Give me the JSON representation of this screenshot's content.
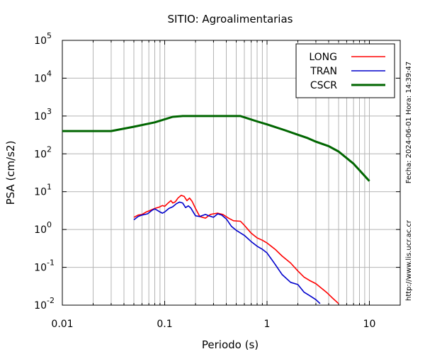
{
  "chart_data": {
    "type": "line",
    "title": "SITIO: Agroalimentarias",
    "xlabel": "Periodo (s)",
    "ylabel": "PSA (cm/s2)",
    "xscale": "log",
    "yscale": "log",
    "xlim": [
      0.01,
      20
    ],
    "ylim": [
      0.01,
      100000
    ],
    "grid": true,
    "legend_position": "top-right",
    "x_tick_labels": [
      {
        "value": 0.01,
        "label": "0.01"
      },
      {
        "value": 0.1,
        "label": "0.1"
      },
      {
        "value": 1,
        "label": "1"
      },
      {
        "value": 10,
        "label": "10"
      }
    ],
    "y_tick_labels": [
      {
        "value": 0.01,
        "base": "10",
        "exp": "-2"
      },
      {
        "value": 0.1,
        "base": "10",
        "exp": "-1"
      },
      {
        "value": 1,
        "base": "10",
        "exp": "0"
      },
      {
        "value": 10,
        "base": "10",
        "exp": "1"
      },
      {
        "value": 100,
        "base": "10",
        "exp": "2"
      },
      {
        "value": 1000,
        "base": "10",
        "exp": "3"
      },
      {
        "value": 10000,
        "base": "10",
        "exp": "4"
      },
      {
        "value": 100000,
        "base": "10",
        "exp": "5"
      }
    ],
    "series": [
      {
        "name": "LONG",
        "color": "#ff0000",
        "width": 1.6,
        "points": [
          [
            0.05,
            2.1
          ],
          [
            0.055,
            2.4
          ],
          [
            0.06,
            2.5
          ],
          [
            0.066,
            2.9
          ],
          [
            0.072,
            3.2
          ],
          [
            0.08,
            3.6
          ],
          [
            0.088,
            3.9
          ],
          [
            0.095,
            4.3
          ],
          [
            0.1,
            4.1
          ],
          [
            0.108,
            5.0
          ],
          [
            0.115,
            5.8
          ],
          [
            0.12,
            5.0
          ],
          [
            0.127,
            5.4
          ],
          [
            0.135,
            6.8
          ],
          [
            0.145,
            8.0
          ],
          [
            0.155,
            7.5
          ],
          [
            0.165,
            5.8
          ],
          [
            0.175,
            6.8
          ],
          [
            0.185,
            5.6
          ],
          [
            0.2,
            3.6
          ],
          [
            0.22,
            2.2
          ],
          [
            0.25,
            2.0
          ],
          [
            0.28,
            2.5
          ],
          [
            0.3,
            2.6
          ],
          [
            0.33,
            2.7
          ],
          [
            0.37,
            2.5
          ],
          [
            0.42,
            2.0
          ],
          [
            0.47,
            1.7
          ],
          [
            0.55,
            1.65
          ],
          [
            0.6,
            1.3
          ],
          [
            0.7,
            0.8
          ],
          [
            0.8,
            0.6
          ],
          [
            0.9,
            0.52
          ],
          [
            1.0,
            0.44
          ],
          [
            1.2,
            0.3
          ],
          [
            1.4,
            0.2
          ],
          [
            1.7,
            0.13
          ],
          [
            2.0,
            0.08
          ],
          [
            2.3,
            0.055
          ],
          [
            2.6,
            0.045
          ],
          [
            3.0,
            0.037
          ],
          [
            3.3,
            0.03
          ],
          [
            3.8,
            0.022
          ],
          [
            4.3,
            0.016
          ],
          [
            5.0,
            0.011
          ]
        ]
      },
      {
        "name": "TRAN",
        "color": "#0000cc",
        "width": 1.6,
        "points": [
          [
            0.05,
            1.8
          ],
          [
            0.055,
            2.2
          ],
          [
            0.06,
            2.4
          ],
          [
            0.068,
            2.6
          ],
          [
            0.075,
            3.2
          ],
          [
            0.08,
            3.5
          ],
          [
            0.085,
            3.2
          ],
          [
            0.09,
            2.9
          ],
          [
            0.095,
            2.7
          ],
          [
            0.1,
            2.9
          ],
          [
            0.11,
            3.6
          ],
          [
            0.12,
            4.0
          ],
          [
            0.13,
            4.8
          ],
          [
            0.14,
            5.3
          ],
          [
            0.15,
            5.0
          ],
          [
            0.16,
            3.8
          ],
          [
            0.17,
            4.2
          ],
          [
            0.18,
            3.7
          ],
          [
            0.2,
            2.3
          ],
          [
            0.22,
            2.2
          ],
          [
            0.25,
            2.5
          ],
          [
            0.27,
            2.3
          ],
          [
            0.3,
            2.1
          ],
          [
            0.33,
            2.6
          ],
          [
            0.36,
            2.4
          ],
          [
            0.4,
            1.9
          ],
          [
            0.45,
            1.2
          ],
          [
            0.5,
            0.95
          ],
          [
            0.6,
            0.7
          ],
          [
            0.7,
            0.48
          ],
          [
            0.8,
            0.36
          ],
          [
            0.9,
            0.3
          ],
          [
            1.0,
            0.24
          ],
          [
            1.2,
            0.12
          ],
          [
            1.4,
            0.065
          ],
          [
            1.7,
            0.04
          ],
          [
            2.0,
            0.035
          ],
          [
            2.3,
            0.022
          ],
          [
            2.6,
            0.018
          ],
          [
            3.0,
            0.014
          ],
          [
            3.3,
            0.011
          ]
        ]
      },
      {
        "name": "CSCR",
        "color": "#006600",
        "width": 3,
        "points": [
          [
            0.01,
            400
          ],
          [
            0.03,
            400
          ],
          [
            0.05,
            520
          ],
          [
            0.08,
            680
          ],
          [
            0.12,
            950
          ],
          [
            0.15,
            1000
          ],
          [
            0.55,
            1000
          ],
          [
            0.8,
            720
          ],
          [
            1.0,
            600
          ],
          [
            1.5,
            420
          ],
          [
            2.0,
            320
          ],
          [
            2.5,
            260
          ],
          [
            3.0,
            210
          ],
          [
            4.0,
            160
          ],
          [
            5.0,
            115
          ],
          [
            7.0,
            55
          ],
          [
            10.0,
            19
          ]
        ]
      }
    ],
    "side_text": [
      "Fecha: 2024-06-01 Hora: 14:39:47",
      "http://www.lis.ucr.ac.cr"
    ]
  }
}
